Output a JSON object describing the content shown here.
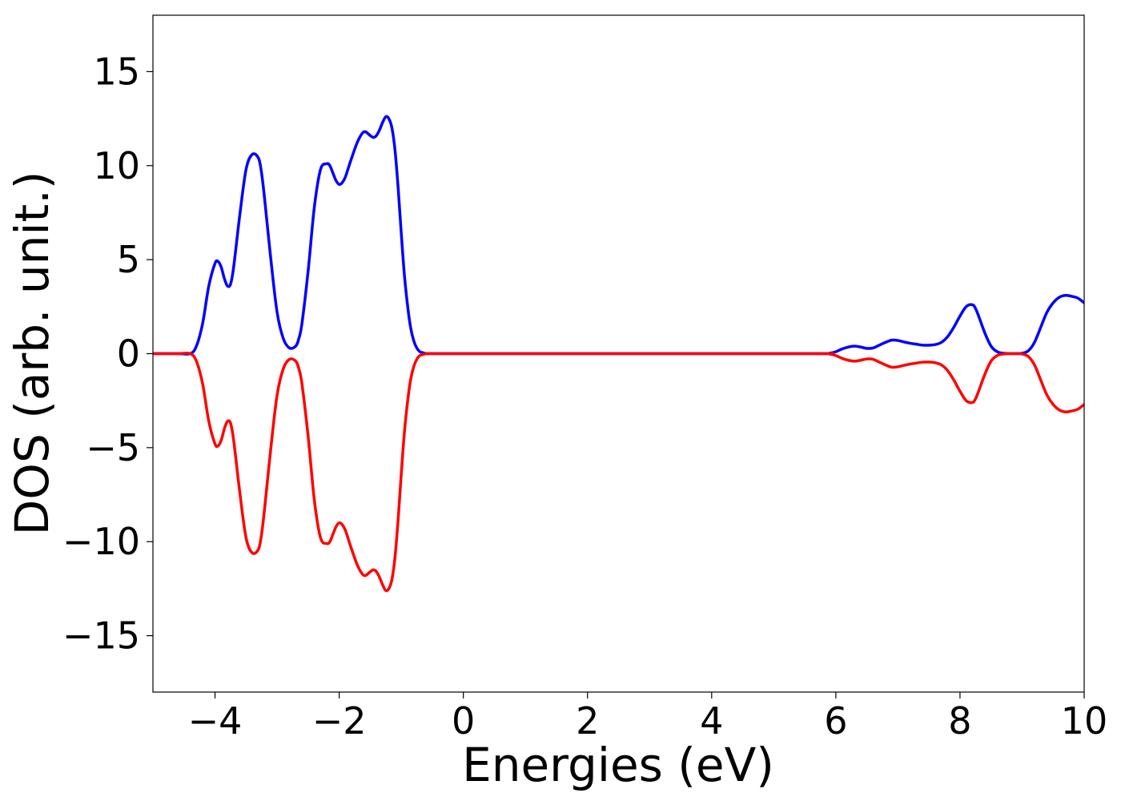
{
  "chart_data": {
    "type": "line",
    "title": "",
    "xlabel": "Energies (eV)",
    "ylabel": "DOS (arb. unit.)",
    "xlim": [
      -5,
      10
    ],
    "ylim": [
      -18,
      18
    ],
    "grid": false,
    "xticks": [
      -4,
      -2,
      0,
      2,
      4,
      6,
      8,
      10
    ],
    "xtick_labels": [
      "−4",
      "−2",
      "0",
      "2",
      "4",
      "6",
      "8",
      "10"
    ],
    "yticks": [
      -15,
      -10,
      -5,
      0,
      5,
      10,
      15
    ],
    "ytick_labels": [
      "−15",
      "−10",
      "−5",
      "0",
      "5",
      "10",
      "15"
    ],
    "series": [
      {
        "color": "#0000ff",
        "x": [
          -5.0,
          -4.6,
          -4.4,
          -4.3,
          -4.2,
          -4.1,
          -4.0,
          -3.95,
          -3.9,
          -3.85,
          -3.8,
          -3.75,
          -3.7,
          -3.6,
          -3.5,
          -3.4,
          -3.3,
          -3.25,
          -3.2,
          -3.1,
          -3.0,
          -2.9,
          -2.8,
          -2.7,
          -2.65,
          -2.6,
          -2.5,
          -2.4,
          -2.3,
          -2.2,
          -2.15,
          -2.1,
          -2.05,
          -2.0,
          -1.95,
          -1.9,
          -1.85,
          -1.8,
          -1.7,
          -1.6,
          -1.5,
          -1.45,
          -1.4,
          -1.35,
          -1.3,
          -1.25,
          -1.2,
          -1.15,
          -1.1,
          -1.05,
          -1.0,
          -0.95,
          -0.9,
          -0.85,
          -0.8,
          -0.75,
          -0.7,
          -0.65,
          -0.6,
          -0.5,
          -0.4,
          0.0,
          2.0,
          4.0,
          5.8,
          5.9,
          6.0,
          6.1,
          6.2,
          6.3,
          6.4,
          6.5,
          6.6,
          6.7,
          6.8,
          6.9,
          7.0,
          7.1,
          7.2,
          7.3,
          7.4,
          7.5,
          7.6,
          7.7,
          7.8,
          7.9,
          8.0,
          8.1,
          8.2,
          8.25,
          8.3,
          8.4,
          8.5,
          8.6,
          8.7,
          8.8,
          8.9,
          9.0,
          9.1,
          9.2,
          9.3,
          9.4,
          9.5,
          9.6,
          9.7,
          9.8,
          9.9,
          10.0
        ],
        "y": [
          0.0,
          0.0,
          0.0,
          0.4,
          1.6,
          3.6,
          4.8,
          4.9,
          4.6,
          4.0,
          3.6,
          3.7,
          4.6,
          7.4,
          9.8,
          10.6,
          10.4,
          9.6,
          8.2,
          5.0,
          2.2,
          0.8,
          0.3,
          0.4,
          0.8,
          1.6,
          4.4,
          7.8,
          9.8,
          10.1,
          10.0,
          9.6,
          9.2,
          9.0,
          9.1,
          9.4,
          9.9,
          10.4,
          11.3,
          11.8,
          11.6,
          11.5,
          11.6,
          11.9,
          12.3,
          12.6,
          12.5,
          12.0,
          10.8,
          8.8,
          6.4,
          4.2,
          2.6,
          1.4,
          0.7,
          0.3,
          0.1,
          0.05,
          0.0,
          0.0,
          0.0,
          0.0,
          0.0,
          0.0,
          0.0,
          0.02,
          0.1,
          0.25,
          0.35,
          0.4,
          0.35,
          0.28,
          0.3,
          0.45,
          0.6,
          0.72,
          0.7,
          0.62,
          0.55,
          0.5,
          0.45,
          0.45,
          0.48,
          0.6,
          0.9,
          1.4,
          2.0,
          2.5,
          2.6,
          2.4,
          2.0,
          1.1,
          0.4,
          0.1,
          0.02,
          0.0,
          0.0,
          0.02,
          0.15,
          0.6,
          1.4,
          2.2,
          2.7,
          3.0,
          3.1,
          3.05,
          2.95,
          2.7
        ]
      },
      {
        "color": "#ff0000",
        "x": [
          -5.0,
          -4.6,
          -4.4,
          -4.3,
          -4.2,
          -4.1,
          -4.0,
          -3.95,
          -3.9,
          -3.85,
          -3.8,
          -3.75,
          -3.7,
          -3.6,
          -3.5,
          -3.4,
          -3.3,
          -3.25,
          -3.2,
          -3.1,
          -3.0,
          -2.9,
          -2.8,
          -2.7,
          -2.65,
          -2.6,
          -2.5,
          -2.4,
          -2.3,
          -2.2,
          -2.15,
          -2.1,
          -2.05,
          -2.0,
          -1.95,
          -1.9,
          -1.85,
          -1.8,
          -1.7,
          -1.6,
          -1.5,
          -1.45,
          -1.4,
          -1.35,
          -1.3,
          -1.25,
          -1.2,
          -1.15,
          -1.1,
          -1.05,
          -1.0,
          -0.95,
          -0.9,
          -0.85,
          -0.8,
          -0.75,
          -0.7,
          -0.65,
          -0.6,
          -0.5,
          -0.4,
          0.0,
          2.0,
          4.0,
          5.8,
          5.9,
          6.0,
          6.1,
          6.2,
          6.3,
          6.4,
          6.5,
          6.6,
          6.7,
          6.8,
          6.9,
          7.0,
          7.1,
          7.2,
          7.3,
          7.4,
          7.5,
          7.6,
          7.7,
          7.8,
          7.9,
          8.0,
          8.1,
          8.2,
          8.25,
          8.3,
          8.4,
          8.5,
          8.6,
          8.7,
          8.8,
          8.9,
          9.0,
          9.1,
          9.2,
          9.3,
          9.4,
          9.5,
          9.6,
          9.7,
          9.8,
          9.9,
          10.0
        ],
        "y": [
          0.0,
          0.0,
          0.0,
          -0.4,
          -1.6,
          -3.6,
          -4.8,
          -4.9,
          -4.6,
          -4.0,
          -3.6,
          -3.7,
          -4.6,
          -7.4,
          -9.8,
          -10.6,
          -10.4,
          -9.6,
          -8.2,
          -5.0,
          -2.2,
          -0.8,
          -0.3,
          -0.4,
          -0.8,
          -1.6,
          -4.4,
          -7.8,
          -9.8,
          -10.1,
          -10.0,
          -9.6,
          -9.2,
          -9.0,
          -9.1,
          -9.4,
          -9.9,
          -10.4,
          -11.3,
          -11.8,
          -11.6,
          -11.5,
          -11.6,
          -11.9,
          -12.3,
          -12.6,
          -12.5,
          -12.0,
          -10.8,
          -8.8,
          -6.4,
          -4.2,
          -2.6,
          -1.4,
          -0.7,
          -0.3,
          -0.1,
          -0.05,
          0.0,
          0.0,
          0.0,
          0.0,
          0.0,
          0.0,
          0.0,
          -0.02,
          -0.1,
          -0.25,
          -0.35,
          -0.4,
          -0.35,
          -0.28,
          -0.3,
          -0.45,
          -0.6,
          -0.72,
          -0.7,
          -0.62,
          -0.55,
          -0.5,
          -0.45,
          -0.45,
          -0.48,
          -0.6,
          -0.9,
          -1.4,
          -2.0,
          -2.5,
          -2.6,
          -2.4,
          -2.0,
          -1.1,
          -0.4,
          -0.1,
          -0.02,
          0.0,
          0.0,
          -0.02,
          -0.15,
          -0.6,
          -1.4,
          -2.2,
          -2.7,
          -3.0,
          -3.1,
          -3.05,
          -2.95,
          -2.7
        ]
      }
    ]
  }
}
